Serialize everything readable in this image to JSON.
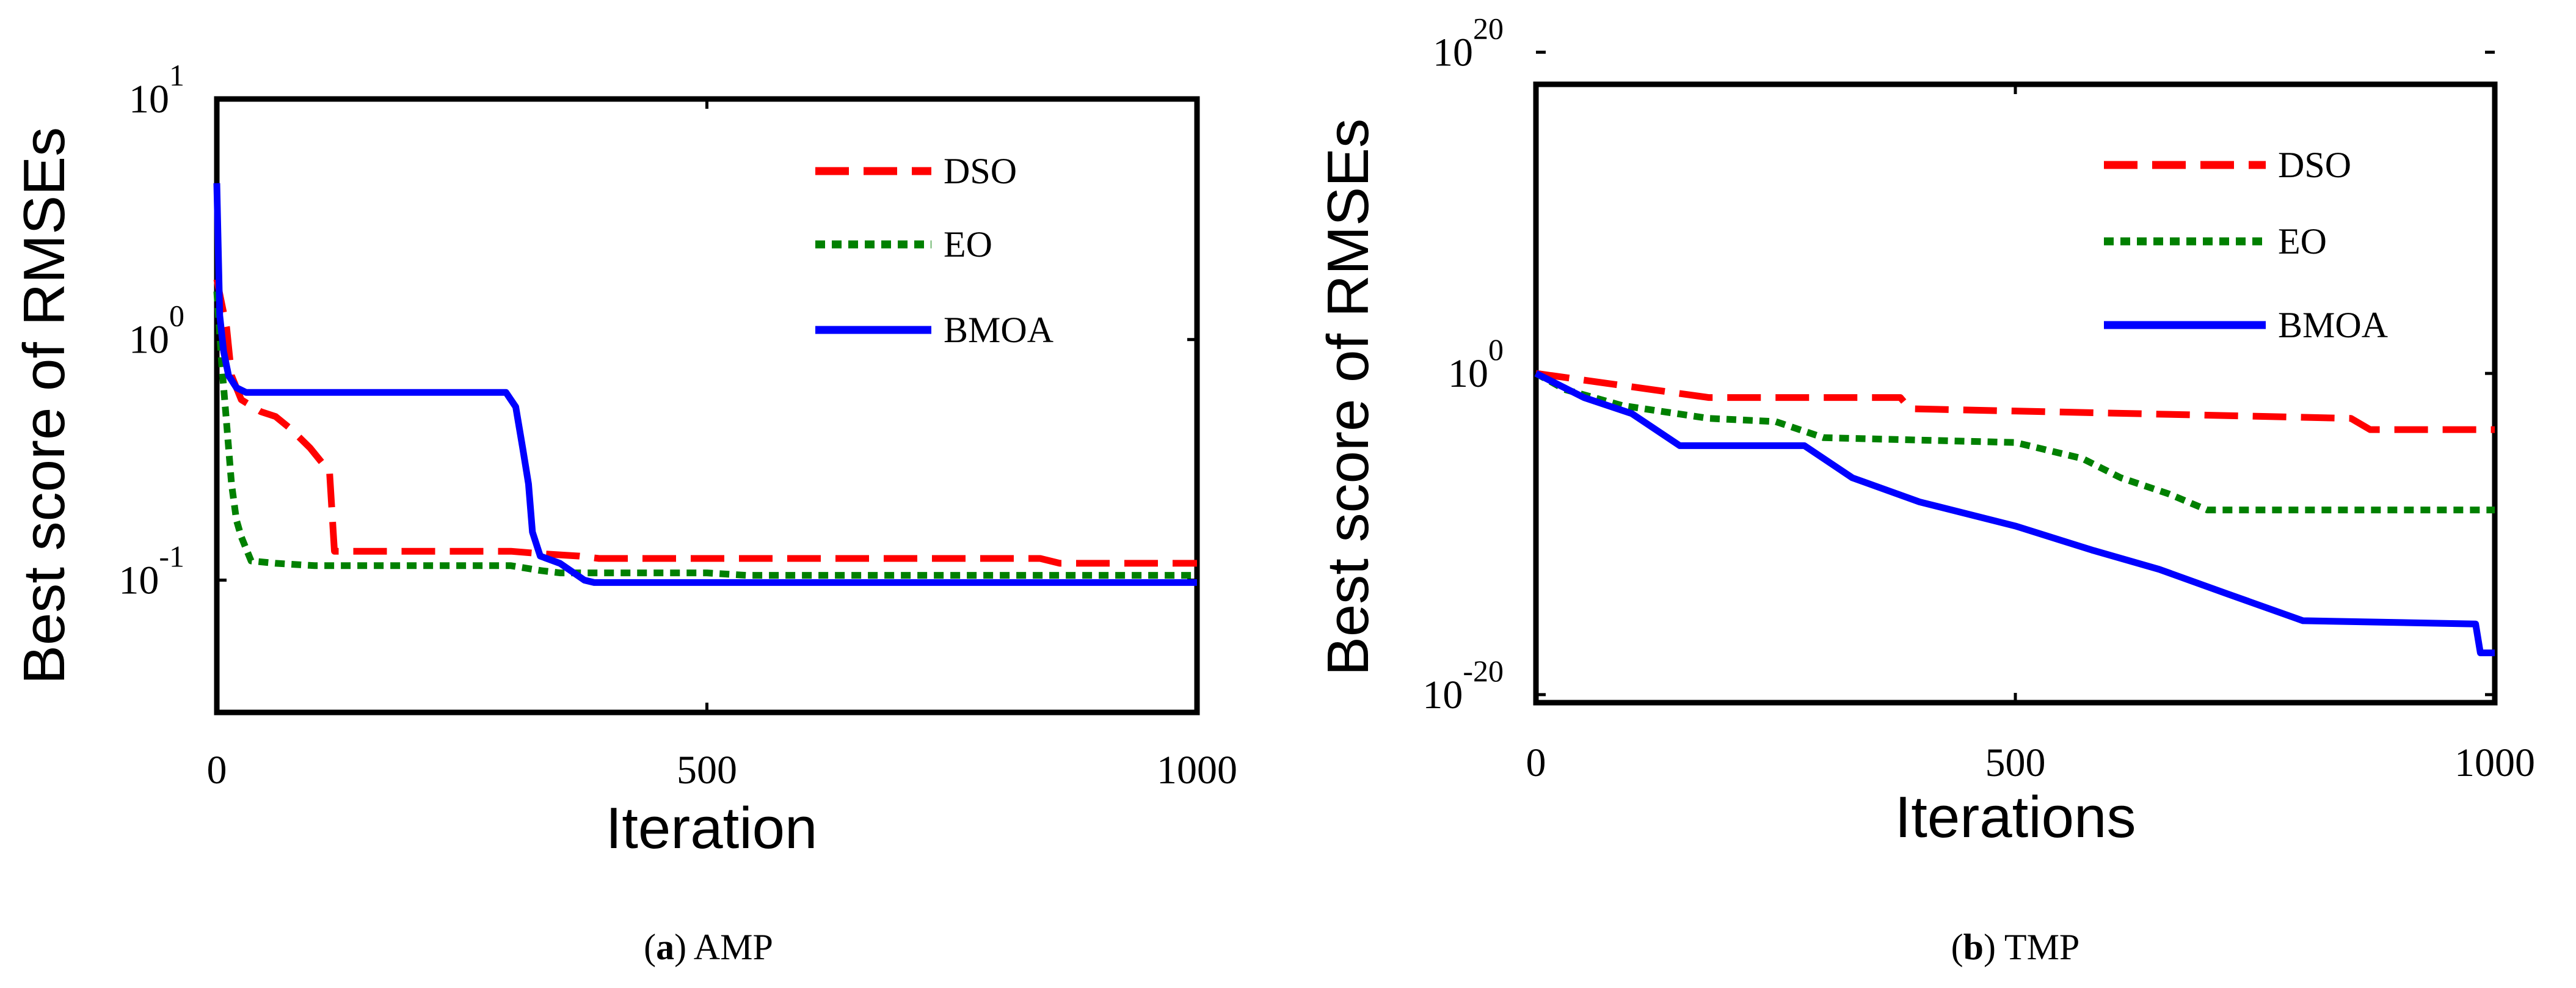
{
  "chart_data": [
    {
      "type": "line",
      "yscale": "log",
      "ylabel": "Best score of RMSEs",
      "xlabel": "Iteration",
      "xlim": [
        0,
        1000
      ],
      "ylim_exp": [
        -1.55,
        1
      ],
      "xticks": [
        0,
        500,
        1000
      ],
      "yticks": [
        {
          "base": "10",
          "exp": "-1",
          "value_exp": -1
        },
        {
          "base": "10",
          "exp": "0",
          "value_exp": 0
        },
        {
          "base": "10",
          "exp": "1",
          "value_exp": 1
        }
      ],
      "legend": "top-right",
      "caption": {
        "label": "a",
        "text": " AMP"
      },
      "series": [
        {
          "name": "DSO",
          "color": "#ff0000",
          "style": "dashed",
          "points": [
            [
              0,
              0.25
            ],
            [
              5,
              0.15
            ],
            [
              10,
              0.05
            ],
            [
              15,
              -0.15
            ],
            [
              25,
              -0.25
            ],
            [
              45,
              -0.3
            ],
            [
              60,
              -0.32
            ],
            [
              75,
              -0.37
            ],
            [
              95,
              -0.45
            ],
            [
              105,
              -0.5
            ],
            [
              115,
              -0.55
            ],
            [
              120,
              -0.88
            ],
            [
              300,
              -0.88
            ],
            [
              330,
              -0.89
            ],
            [
              370,
              -0.9
            ],
            [
              390,
              -0.91
            ],
            [
              840,
              -0.91
            ],
            [
              860,
              -0.93
            ],
            [
              1000,
              -0.93
            ]
          ]
        },
        {
          "name": "EO",
          "color": "#008000",
          "style": "dotted",
          "points": [
            [
              0,
              0.2
            ],
            [
              5,
              -0.1
            ],
            [
              10,
              -0.35
            ],
            [
              15,
              -0.6
            ],
            [
              20,
              -0.75
            ],
            [
              25,
              -0.82
            ],
            [
              30,
              -0.87
            ],
            [
              35,
              -0.92
            ],
            [
              60,
              -0.93
            ],
            [
              100,
              -0.94
            ],
            [
              300,
              -0.94
            ],
            [
              330,
              -0.96
            ],
            [
              350,
              -0.97
            ],
            [
              500,
              -0.97
            ],
            [
              540,
              -0.98
            ],
            [
              1000,
              -0.98
            ]
          ]
        },
        {
          "name": "BMOA",
          "color": "#0000ff",
          "style": "solid",
          "points": [
            [
              0,
              0.65
            ],
            [
              3,
              0.1
            ],
            [
              7,
              -0.05
            ],
            [
              12,
              -0.15
            ],
            [
              20,
              -0.2
            ],
            [
              30,
              -0.22
            ],
            [
              295,
              -0.22
            ],
            [
              305,
              -0.28
            ],
            [
              312,
              -0.45
            ],
            [
              318,
              -0.6
            ],
            [
              322,
              -0.8
            ],
            [
              330,
              -0.9
            ],
            [
              350,
              -0.93
            ],
            [
              375,
              -1.0
            ],
            [
              385,
              -1.01
            ],
            [
              1000,
              -1.01
            ]
          ]
        }
      ]
    },
    {
      "type": "line",
      "yscale": "log",
      "ylabel": "Best score of RMSEs",
      "xlabel": "Iterations",
      "xlim": [
        0,
        1000
      ],
      "ylim_exp": [
        -20.5,
        18
      ],
      "xticks": [
        0,
        500,
        1000
      ],
      "yticks": [
        {
          "base": "10",
          "exp": "-20",
          "value_exp": -20
        },
        {
          "base": "10",
          "exp": "0",
          "value_exp": 0
        },
        {
          "base": "10",
          "exp": "20",
          "value_exp": 20
        }
      ],
      "legend": "top-right",
      "caption": {
        "label": "b",
        "text": " TMP"
      },
      "series": [
        {
          "name": "DSO",
          "color": "#ff0000",
          "style": "dashed",
          "points": [
            [
              0,
              0
            ],
            [
              60,
              -0.5
            ],
            [
              120,
              -1
            ],
            [
              180,
              -1.5
            ],
            [
              380,
              -1.5
            ],
            [
              390,
              -2.2
            ],
            [
              700,
              -2.6
            ],
            [
              850,
              -2.8
            ],
            [
              870,
              -3.5
            ],
            [
              1000,
              -3.5
            ]
          ]
        },
        {
          "name": "EO",
          "color": "#008000",
          "style": "dotted",
          "points": [
            [
              0,
              0
            ],
            [
              30,
              -1
            ],
            [
              90,
              -2
            ],
            [
              180,
              -2.8
            ],
            [
              250,
              -3
            ],
            [
              300,
              -4
            ],
            [
              500,
              -4.3
            ],
            [
              570,
              -5.3
            ],
            [
              610,
              -6.5
            ],
            [
              660,
              -7.5
            ],
            [
              700,
              -8.5
            ],
            [
              1000,
              -8.5
            ]
          ]
        },
        {
          "name": "BMOA",
          "color": "#0000ff",
          "style": "solid",
          "points": [
            [
              0,
              0
            ],
            [
              50,
              -1.5
            ],
            [
              100,
              -2.5
            ],
            [
              150,
              -4.5
            ],
            [
              280,
              -4.5
            ],
            [
              330,
              -6.5
            ],
            [
              400,
              -8
            ],
            [
              500,
              -9.5
            ],
            [
              580,
              -11
            ],
            [
              650,
              -12.2
            ],
            [
              720,
              -13.7
            ],
            [
              800,
              -15.4
            ],
            [
              980,
              -15.6
            ],
            [
              985,
              -17.4
            ],
            [
              1000,
              -17.4
            ]
          ]
        }
      ]
    }
  ]
}
